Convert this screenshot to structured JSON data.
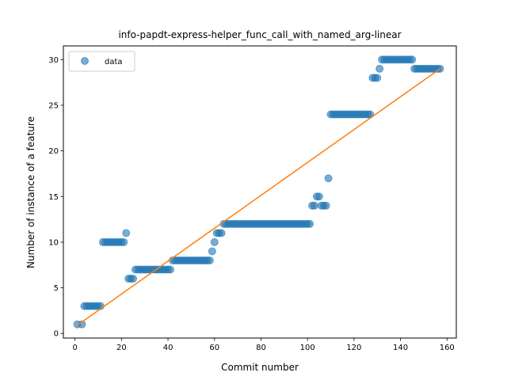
{
  "chart_data": {
    "type": "scatter",
    "title": "info-papdt-express-helper_func_call_with_named_arg-linear",
    "xlabel": "Commit number",
    "ylabel": "Number of instance of a feature",
    "xlim": [
      -5,
      164
    ],
    "ylim": [
      -0.5,
      31.5
    ],
    "xticks": [
      0,
      20,
      40,
      60,
      80,
      100,
      120,
      140,
      160
    ],
    "yticks": [
      0,
      5,
      10,
      15,
      20,
      25,
      30
    ],
    "legend_position": "upper-left",
    "series": [
      {
        "name": "data",
        "marker": "circle",
        "color": "#1f77b4",
        "segments": [
          {
            "from": 1,
            "to": 1,
            "y": 1
          },
          {
            "from": 3,
            "to": 3,
            "y": 1
          },
          {
            "from": 4,
            "to": 11,
            "y": 3
          },
          {
            "from": 12,
            "to": 21,
            "y": 10
          },
          {
            "from": 22,
            "to": 22,
            "y": 11
          },
          {
            "from": 23,
            "to": 25,
            "y": 6
          },
          {
            "from": 26,
            "to": 41,
            "y": 7
          },
          {
            "from": 42,
            "to": 57,
            "y": 8
          },
          {
            "from": 58,
            "to": 58,
            "y": 8
          },
          {
            "from": 59,
            "to": 59,
            "y": 9
          },
          {
            "from": 60,
            "to": 60,
            "y": 10
          },
          {
            "from": 61,
            "to": 63,
            "y": 11
          },
          {
            "from": 64,
            "to": 101,
            "y": 12
          },
          {
            "from": 102,
            "to": 103,
            "y": 14
          },
          {
            "from": 104,
            "to": 105,
            "y": 15
          },
          {
            "from": 106,
            "to": 108,
            "y": 14
          },
          {
            "from": 109,
            "to": 109,
            "y": 17
          },
          {
            "from": 110,
            "to": 127,
            "y": 24
          },
          {
            "from": 128,
            "to": 130,
            "y": 28
          },
          {
            "from": 131,
            "to": 131,
            "y": 29
          },
          {
            "from": 132,
            "to": 145,
            "y": 30
          },
          {
            "from": 146,
            "to": 157,
            "y": 29
          }
        ]
      },
      {
        "name": "",
        "type": "line",
        "color": "#ff7f0e",
        "x": [
          1,
          157
        ],
        "y": [
          0.9,
          29.0
        ]
      }
    ]
  }
}
